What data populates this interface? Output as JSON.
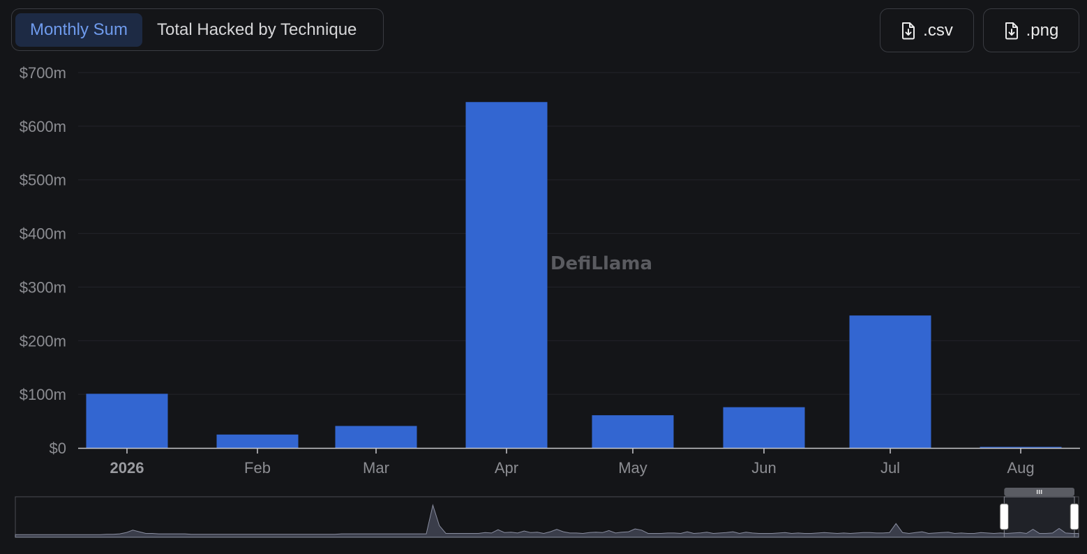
{
  "tabs": [
    {
      "label": "Monthly Sum",
      "active": true
    },
    {
      "label": "Total Hacked by Technique",
      "active": false
    }
  ],
  "downloads": {
    "csv_label": ".csv",
    "png_label": ".png"
  },
  "watermark": "DefiLlama",
  "colors": {
    "bar": "#3366d1",
    "background": "#141518",
    "grid": "#23252a",
    "axis": "#c9cacd"
  },
  "chart_data": {
    "type": "bar",
    "categories": [
      "2026",
      "Feb",
      "Mar",
      "Apr",
      "May",
      "Jun",
      "Jul",
      "Aug"
    ],
    "values": [
      101,
      25,
      41,
      645,
      61,
      76,
      247,
      2
    ],
    "value_unit": "$m",
    "y_ticks": [
      "$0",
      "$100m",
      "$200m",
      "$300m",
      "$400m",
      "$500m",
      "$600m",
      "$700m"
    ],
    "ylim": [
      0,
      700
    ],
    "grid": true,
    "bold_categories": [
      "2026"
    ],
    "title": "",
    "xlabel": "",
    "ylabel": "",
    "overview_brush": {
      "series": [
        3,
        3,
        3,
        3,
        3,
        3,
        3,
        3,
        3,
        3,
        3,
        3,
        3,
        3,
        4,
        4,
        5,
        8,
        14,
        10,
        6,
        6,
        5,
        5,
        5,
        5,
        5,
        4,
        4,
        4,
        4,
        4,
        4,
        4,
        4,
        4,
        4,
        4,
        4,
        4,
        4,
        4,
        4,
        4,
        4,
        4,
        4,
        4,
        4,
        4,
        5,
        5,
        5,
        5,
        5,
        5,
        5,
        5,
        5,
        5,
        5,
        5,
        5,
        5,
        75,
        25,
        6,
        6,
        6,
        6,
        6,
        6,
        8,
        7,
        15,
        8,
        9,
        7,
        12,
        8,
        9,
        6,
        10,
        16,
        10,
        7,
        7,
        6,
        8,
        9,
        8,
        13,
        7,
        9,
        10,
        17,
        14,
        6,
        6,
        6,
        7,
        7,
        6,
        10,
        6,
        7,
        9,
        6,
        7,
        8,
        10,
        6,
        9,
        7,
        6,
        6,
        6,
        7,
        8,
        6,
        7,
        6,
        6,
        7,
        8,
        7,
        6,
        7,
        6,
        7,
        8,
        8,
        7,
        7,
        8,
        30,
        8,
        6,
        8,
        10,
        6,
        7,
        8,
        9,
        6,
        7,
        6,
        6,
        8,
        7,
        6,
        7,
        6,
        7,
        8,
        6,
        16,
        6,
        6,
        7,
        18,
        7,
        6,
        6
      ],
      "selection": [
        0.93,
        1.0
      ]
    }
  }
}
